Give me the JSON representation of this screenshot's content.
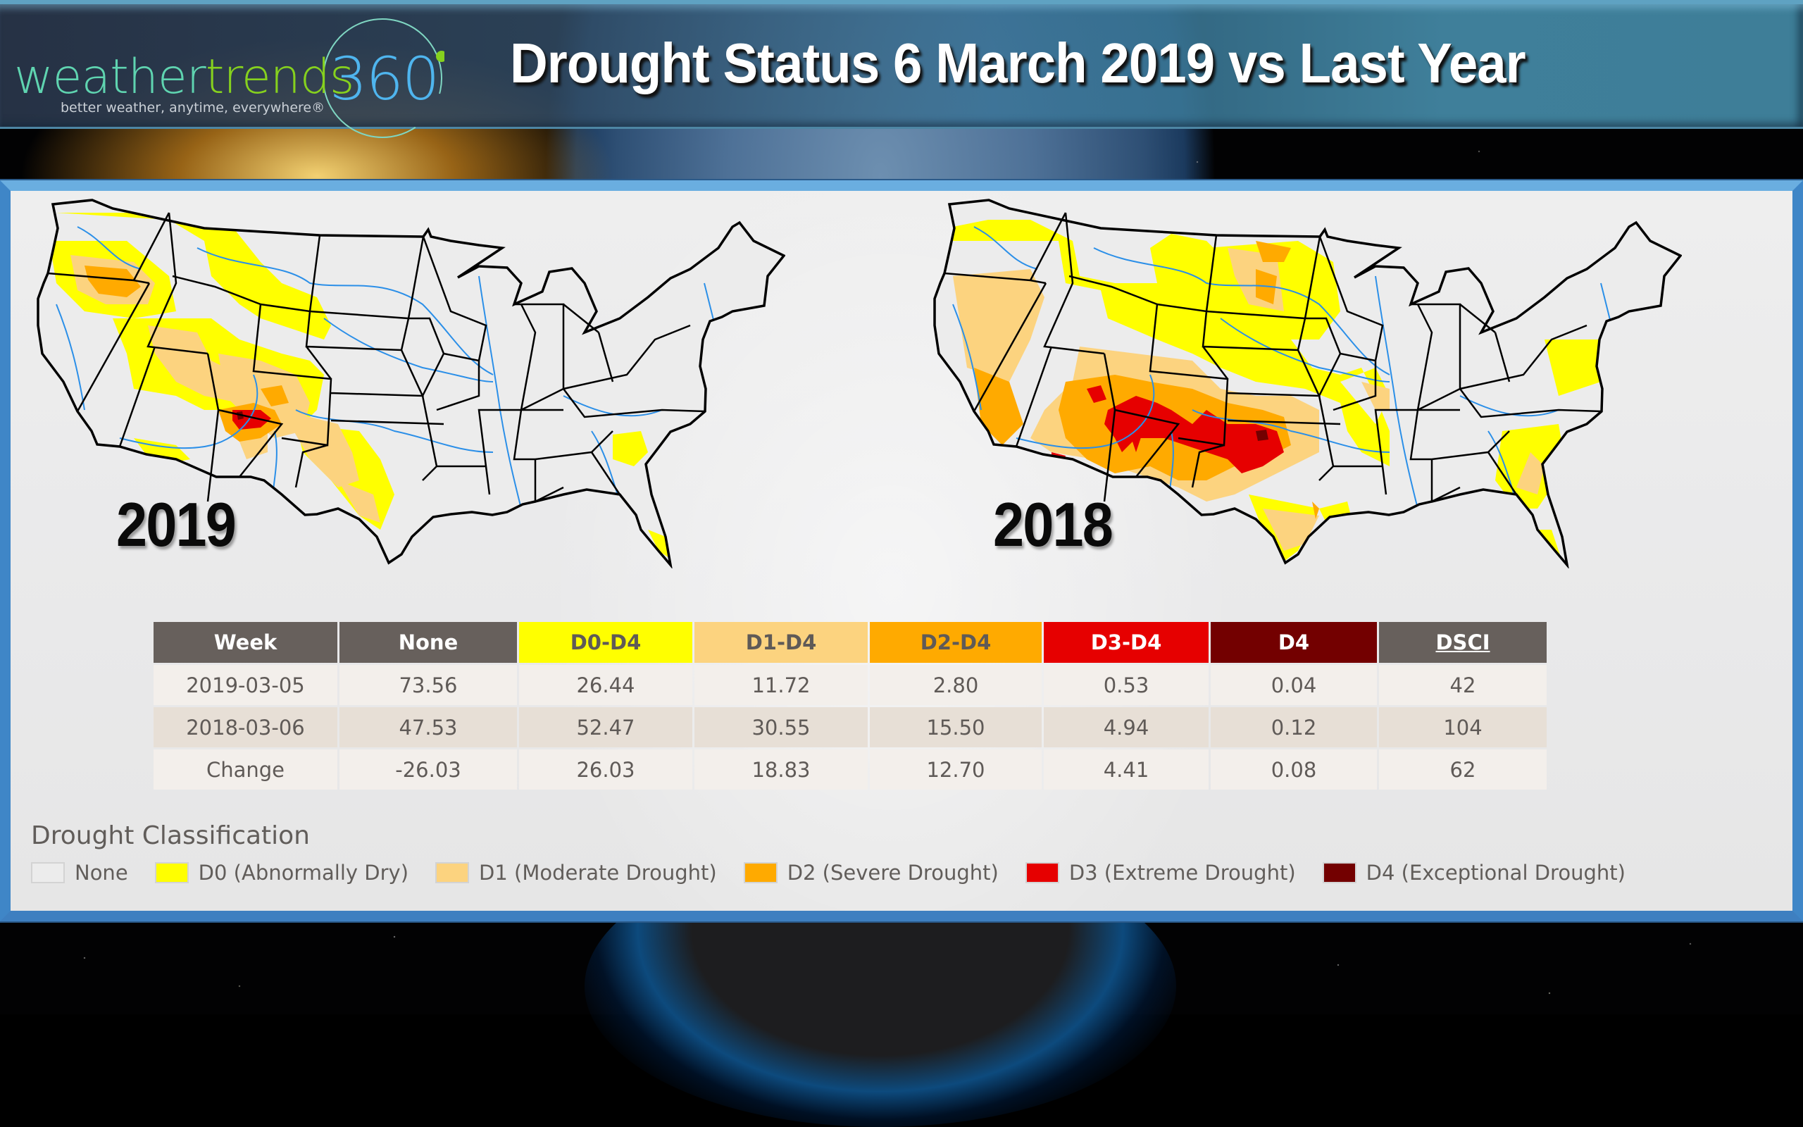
{
  "logo": {
    "word_part1": "weather",
    "word_part2": "trends",
    "number": "360",
    "tagline": "better weather, anytime, everywhere®",
    "colors": {
      "weather": "#5fd4b0",
      "trends": "#86d11e",
      "number": "#4fb5ee"
    }
  },
  "header": {
    "title": "Drought Status 6 March 2019 vs Last Year"
  },
  "maps": [
    {
      "year_label": "2019",
      "region": "Contiguous United States",
      "max_category": "D4"
    },
    {
      "year_label": "2018",
      "region": "Contiguous United States",
      "max_category": "D4"
    }
  ],
  "table": {
    "columns": [
      {
        "label": "Week",
        "color": "#67605c",
        "text_color": "#ffffff"
      },
      {
        "label": "None",
        "color": "#67605c",
        "text_color": "#ffffff"
      },
      {
        "label": "D0-D4",
        "color": "#ffff00",
        "text_color": "#5f5a57"
      },
      {
        "label": "D1-D4",
        "color": "#fcd37f",
        "text_color": "#5f5a57"
      },
      {
        "label": "D2-D4",
        "color": "#ffaa00",
        "text_color": "#5f5a57"
      },
      {
        "label": "D3-D4",
        "color": "#e60000",
        "text_color": "#ffffff"
      },
      {
        "label": "D4",
        "color": "#730000",
        "text_color": "#ffffff"
      },
      {
        "label": "DSCI",
        "color": "#67605c",
        "text_color": "#ffffff"
      }
    ],
    "rows": [
      [
        "2019-03-05",
        "73.56",
        "26.44",
        "11.72",
        "2.80",
        "0.53",
        "0.04",
        "42"
      ],
      [
        "2018-03-06",
        "47.53",
        "52.47",
        "30.55",
        "15.50",
        "4.94",
        "0.12",
        "104"
      ],
      [
        "Change",
        "-26.03",
        "26.03",
        "18.83",
        "12.70",
        "4.41",
        "0.08",
        "62"
      ]
    ]
  },
  "legend": {
    "title": "Drought Classification",
    "items": [
      {
        "label": "None",
        "color": "#ececec"
      },
      {
        "label": "D0 (Abnormally Dry)",
        "color": "#ffff00"
      },
      {
        "label": "D1 (Moderate Drought)",
        "color": "#fcd37f"
      },
      {
        "label": "D2 (Severe Drought)",
        "color": "#ffaa00"
      },
      {
        "label": "D3 (Extreme Drought)",
        "color": "#e60000"
      },
      {
        "label": "D4 (Exceptional Drought)",
        "color": "#730000"
      }
    ]
  }
}
